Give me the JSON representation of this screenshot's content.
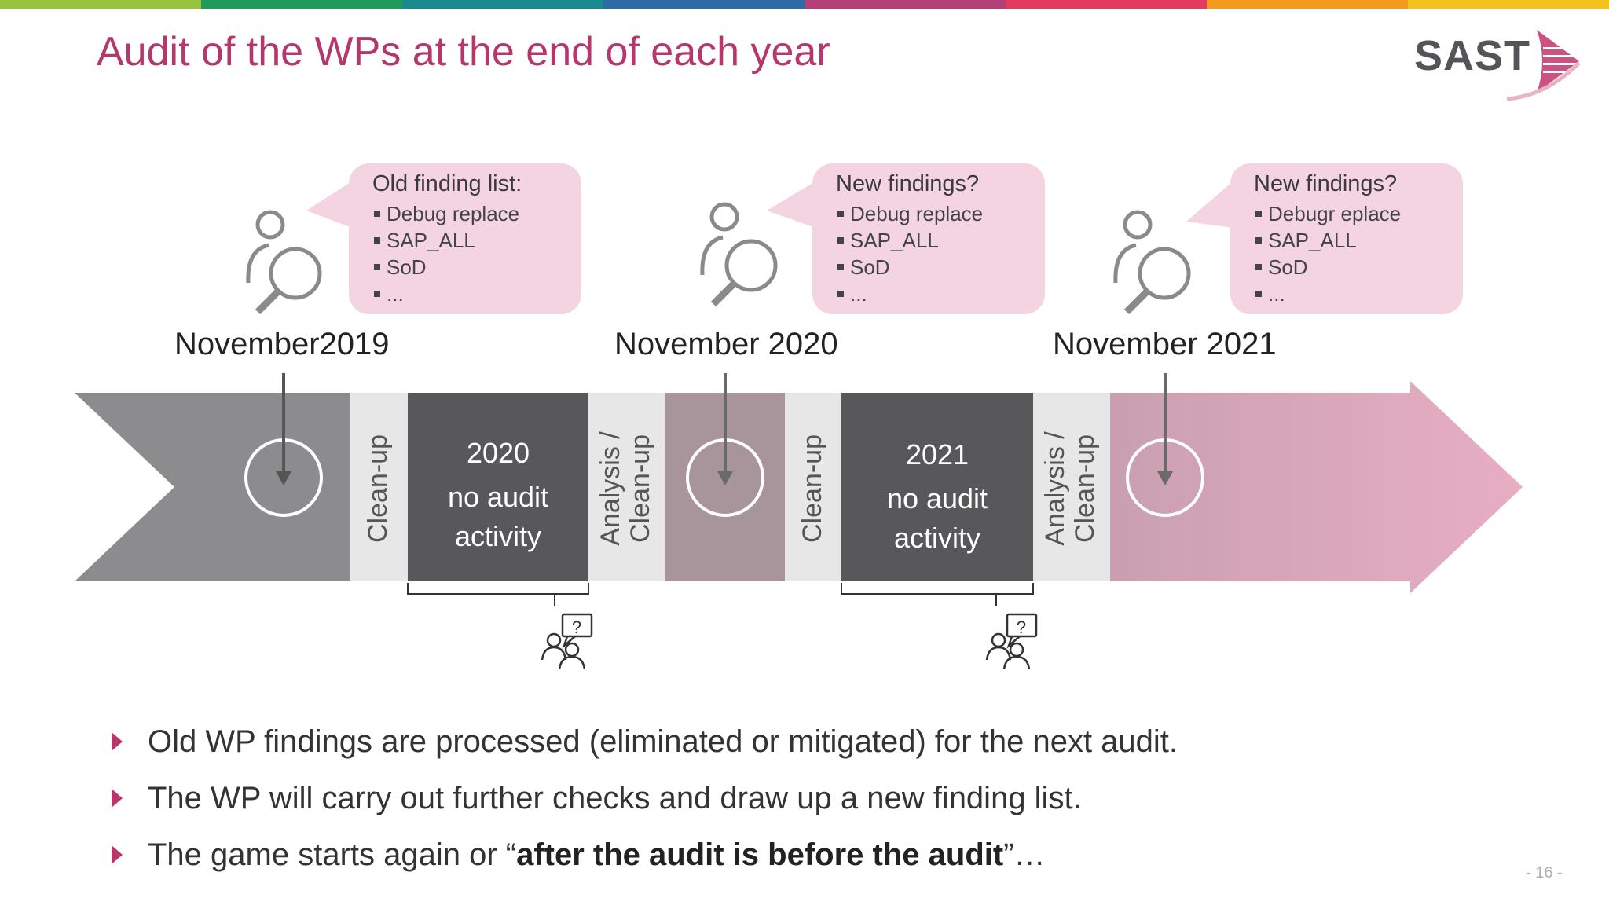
{
  "colors": {
    "accent": "#b5386c",
    "topbar": [
      "#97c33c",
      "#1f9a5a",
      "#1a8a8f",
      "#2d6aa8",
      "#b43f78",
      "#e33b5c",
      "#f39a1d",
      "#f4c21b"
    ],
    "gray_arrow": "#8c8b8d",
    "dark_block": "#58575a",
    "light_block": "#e8e7e8",
    "mauve_block": "#a8959c",
    "pink_arrow": "#dca8bd"
  },
  "title": "Audit of the WPs at the end of each year",
  "logo": {
    "text": "SAST"
  },
  "bubbles": [
    {
      "title": "Old finding list:",
      "items": [
        "Debug replace",
        "SAP_ALL",
        "SoD",
        "..."
      ]
    },
    {
      "title": "New findings?",
      "items": [
        "Debug replace",
        "SAP_ALL",
        "SoD",
        "..."
      ]
    },
    {
      "title": "New  findings?",
      "items": [
        "Debugr eplace",
        "SAP_ALL",
        "SoD",
        "..."
      ]
    }
  ],
  "dates": [
    "November2019",
    "November 2020",
    "November 2021"
  ],
  "segments": {
    "cleanup_1": "Clean-up",
    "block_2020": [
      "2020",
      "no audit",
      "activity"
    ],
    "analysis_1": [
      "Analysis /",
      "Clean-up"
    ],
    "cleanup_2": "Clean-up",
    "block_2021": [
      "2021",
      "no audit",
      "activity"
    ],
    "analysis_2": [
      "Analysis /",
      "Clean-up"
    ]
  },
  "bullets": [
    {
      "text": "Old WP findings are processed (eliminated or mitigated) for the next audit."
    },
    {
      "text": "The WP will carry out further checks and draw up a new finding list."
    },
    {
      "pre": "The game starts again or “",
      "bold": "after the audit is before the audit",
      "post": "”…"
    }
  ],
  "page_number": "- 16 -"
}
